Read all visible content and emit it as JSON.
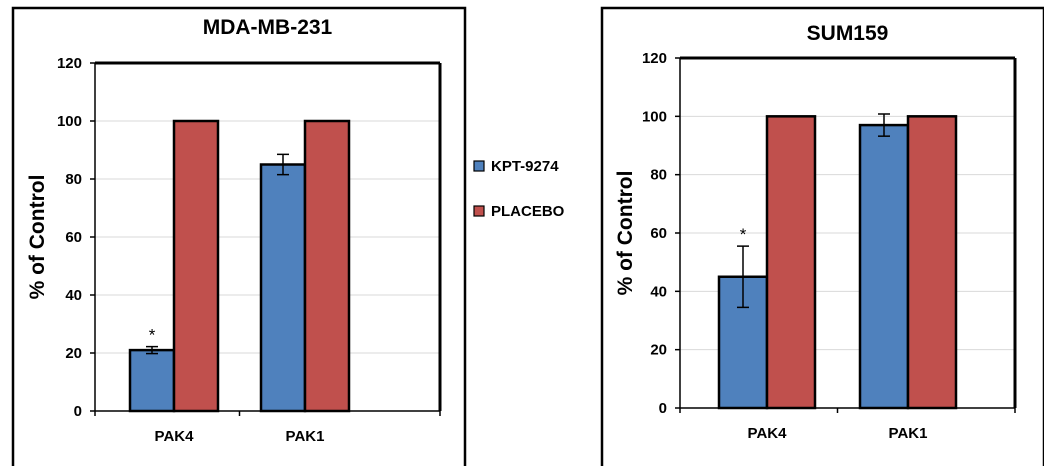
{
  "legend": {
    "entries": [
      {
        "label": "KPT-9274",
        "color": "#4f81bd"
      },
      {
        "label": "PLACEBO",
        "color": "#c0504d"
      }
    ]
  },
  "chart_data": [
    {
      "type": "bar",
      "title": "MDA-MB-231",
      "ylabel": "% of Control",
      "xlabel": "",
      "categories": [
        "PAK4",
        "PAK1"
      ],
      "ylim": [
        0,
        120
      ],
      "yticks": [
        0,
        20,
        40,
        60,
        80,
        100,
        120
      ],
      "grid": "horizontal",
      "series": [
        {
          "name": "KPT-9274",
          "color": "#4f81bd",
          "values": [
            21,
            85
          ],
          "errors": [
            1.2,
            3.5
          ]
        },
        {
          "name": "PLACEBO",
          "color": "#c0504d",
          "values": [
            100,
            100
          ],
          "errors": [
            0,
            0
          ]
        }
      ],
      "annotations": [
        {
          "text": "*",
          "category": "PAK4",
          "series": "KPT-9274"
        }
      ]
    },
    {
      "type": "bar",
      "title": "SUM159",
      "ylabel": "% of Control",
      "xlabel": "",
      "categories": [
        "PAK4",
        "PAK1"
      ],
      "ylim": [
        0,
        120
      ],
      "yticks": [
        0,
        20,
        40,
        60,
        80,
        100,
        120
      ],
      "grid": "horizontal",
      "series": [
        {
          "name": "KPT-9274",
          "color": "#4f81bd",
          "values": [
            45,
            97
          ],
          "errors": [
            10.5,
            3.8
          ]
        },
        {
          "name": "PLACEBO",
          "color": "#c0504d",
          "values": [
            100,
            100
          ],
          "errors": [
            0,
            0
          ]
        }
      ],
      "annotations": [
        {
          "text": "*",
          "category": "PAK4",
          "series": "KPT-9274"
        }
      ]
    }
  ]
}
